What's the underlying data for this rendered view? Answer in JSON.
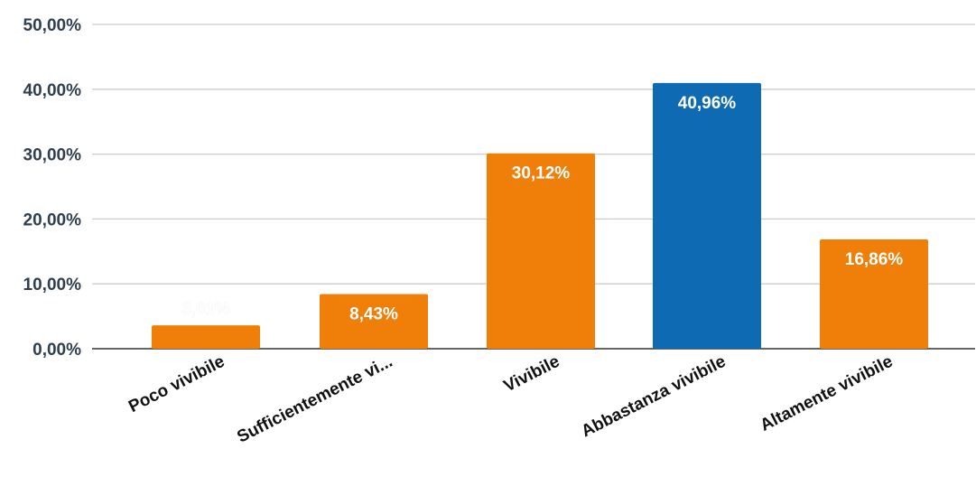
{
  "chart_data": {
    "type": "bar",
    "categories": [
      "Poco vivibile",
      "Sufficientemente vi...",
      "Vivibile",
      "Abbastanza vivibile",
      "Altamente vivibile"
    ],
    "values": [
      3.61,
      8.43,
      30.12,
      40.96,
      16.86
    ],
    "data_labels": [
      "3,61%",
      "8,43%",
      "30,12%",
      "40,96%",
      "16,86%"
    ],
    "bar_colors": [
      "#f07f0a",
      "#f07f0a",
      "#f07f0a",
      "#0f6ab4",
      "#f07f0a"
    ],
    "y_ticks": [
      0,
      10,
      20,
      30,
      40,
      50
    ],
    "y_tick_labels": [
      "0,00%",
      "10,00%",
      "20,00%",
      "30,00%",
      "40,00%",
      "50,00%"
    ],
    "ylim": [
      0,
      50
    ],
    "grid": true,
    "legend": "none",
    "gridline_color": "#cccccc",
    "axis_color": "#333333"
  }
}
